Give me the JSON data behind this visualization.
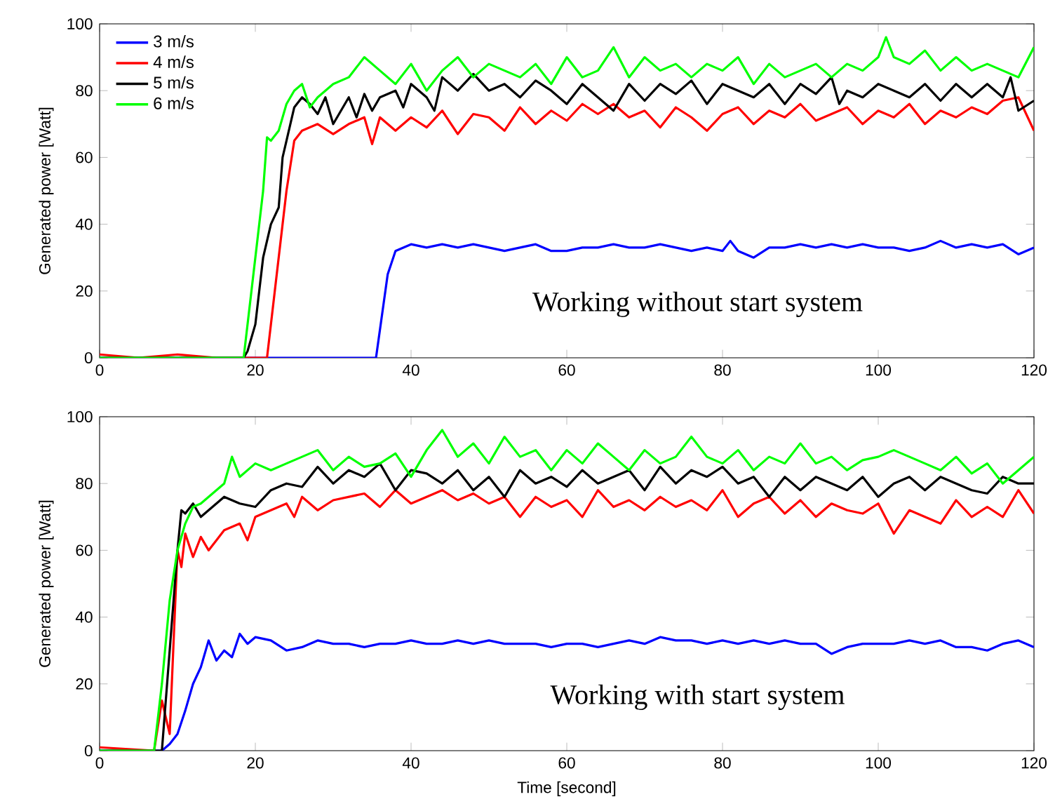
{
  "chart_data": [
    {
      "type": "line",
      "ylabel": "Generated power [Watt]",
      "xlim": [
        0,
        120
      ],
      "ylim": [
        0,
        100
      ],
      "xticks": [
        0,
        20,
        40,
        60,
        80,
        100,
        120
      ],
      "yticks": [
        0,
        20,
        40,
        60,
        80,
        100
      ],
      "grid": false,
      "legend": "top left",
      "line_style": "solid",
      "marker": "none",
      "annotations": [
        "Working without start system"
      ],
      "series": [
        {
          "name": "3 m/s",
          "color": "#0000ff",
          "x": [
            0,
            35.5,
            37,
            38,
            40,
            42,
            44,
            46,
            48,
            50,
            52,
            54,
            56,
            58,
            60,
            62,
            64,
            66,
            68,
            70,
            72,
            74,
            76,
            78,
            80,
            81,
            82,
            84,
            86,
            88,
            90,
            92,
            94,
            96,
            98,
            100,
            102,
            104,
            106,
            108,
            110,
            112,
            114,
            116,
            118,
            120
          ],
          "values": [
            0,
            0,
            25,
            32,
            34,
            33,
            34,
            33,
            34,
            33,
            32,
            33,
            34,
            32,
            32,
            33,
            33,
            34,
            33,
            33,
            34,
            33,
            32,
            33,
            32,
            35,
            32,
            30,
            33,
            33,
            34,
            33,
            34,
            33,
            34,
            33,
            33,
            32,
            33,
            35,
            33,
            34,
            33,
            34,
            31,
            33
          ]
        },
        {
          "name": "4 m/s",
          "color": "#ff0000",
          "x": [
            0,
            5,
            10,
            15,
            21.5,
            22.5,
            24,
            25,
            26,
            28,
            30,
            32,
            34,
            35,
            36,
            38,
            40,
            42,
            44,
            46,
            48,
            50,
            52,
            54,
            56,
            58,
            60,
            62,
            64,
            66,
            68,
            70,
            72,
            74,
            76,
            78,
            80,
            82,
            84,
            86,
            88,
            90,
            92,
            94,
            96,
            98,
            100,
            102,
            104,
            106,
            108,
            110,
            112,
            114,
            116,
            118,
            120
          ],
          "values": [
            1,
            0,
            1,
            0,
            0,
            20,
            50,
            65,
            68,
            70,
            67,
            70,
            72,
            64,
            72,
            68,
            72,
            69,
            74,
            67,
            73,
            72,
            68,
            75,
            70,
            74,
            71,
            76,
            73,
            76,
            72,
            74,
            69,
            75,
            72,
            68,
            73,
            75,
            70,
            74,
            72,
            76,
            71,
            73,
            75,
            70,
            74,
            72,
            76,
            70,
            74,
            72,
            75,
            73,
            77,
            78,
            68
          ]
        },
        {
          "name": "5 m/s",
          "color": "#000000",
          "x": [
            0,
            18.5,
            19,
            20,
            21,
            22,
            23,
            23.5,
            24,
            25,
            26,
            27,
            28,
            29,
            30,
            32,
            33,
            34,
            35,
            36,
            38,
            39,
            40,
            42,
            43,
            44,
            46,
            48,
            50,
            52,
            54,
            56,
            58,
            60,
            62,
            64,
            66,
            68,
            70,
            72,
            74,
            76,
            78,
            80,
            82,
            84,
            86,
            88,
            90,
            92,
            94,
            95,
            96,
            98,
            100,
            102,
            104,
            106,
            108,
            110,
            112,
            114,
            116,
            117,
            118,
            120
          ],
          "values": [
            0,
            0,
            2,
            10,
            30,
            40,
            45,
            60,
            65,
            75,
            78,
            76,
            73,
            78,
            70,
            78,
            72,
            79,
            74,
            78,
            80,
            75,
            82,
            78,
            74,
            84,
            80,
            85,
            80,
            82,
            78,
            83,
            80,
            76,
            82,
            78,
            74,
            82,
            77,
            82,
            79,
            83,
            76,
            82,
            80,
            78,
            82,
            76,
            82,
            79,
            84,
            76,
            80,
            78,
            82,
            80,
            78,
            82,
            77,
            82,
            78,
            82,
            78,
            84,
            74,
            77
          ]
        },
        {
          "name": "6 m/s",
          "color": "#00ff00",
          "x": [
            0,
            18.5,
            20,
            21,
            21.5,
            22,
            23,
            24,
            25,
            26,
            27,
            28,
            30,
            32,
            34,
            36,
            38,
            40,
            42,
            44,
            46,
            48,
            50,
            52,
            54,
            56,
            58,
            60,
            62,
            64,
            66,
            68,
            70,
            72,
            74,
            76,
            78,
            80,
            82,
            84,
            86,
            88,
            90,
            92,
            94,
            96,
            98,
            100,
            101,
            102,
            104,
            106,
            108,
            110,
            112,
            114,
            116,
            118,
            120
          ],
          "values": [
            0,
            0,
            30,
            50,
            66,
            65,
            68,
            76,
            80,
            82,
            75,
            78,
            82,
            84,
            90,
            86,
            82,
            88,
            80,
            86,
            90,
            84,
            88,
            86,
            84,
            88,
            82,
            90,
            84,
            86,
            93,
            84,
            90,
            86,
            88,
            84,
            88,
            86,
            90,
            82,
            88,
            84,
            86,
            88,
            84,
            88,
            86,
            90,
            96,
            90,
            88,
            92,
            86,
            90,
            86,
            88,
            86,
            84,
            93
          ]
        }
      ]
    },
    {
      "type": "line",
      "xlabel": "Time [second]",
      "ylabel": "Generated power [Watt]",
      "xlim": [
        0,
        120
      ],
      "ylim": [
        0,
        100
      ],
      "xticks": [
        0,
        20,
        40,
        60,
        80,
        100,
        120
      ],
      "yticks": [
        0,
        20,
        40,
        60,
        80,
        100
      ],
      "grid": false,
      "legend": false,
      "line_style": "solid",
      "marker": "none",
      "annotations": [
        "Working with start system"
      ],
      "series": [
        {
          "color": "#0000ff",
          "x": [
            0,
            8,
            9,
            10,
            11,
            12,
            13,
            14,
            15,
            16,
            17,
            18,
            19,
            20,
            22,
            24,
            26,
            28,
            30,
            32,
            34,
            36,
            38,
            40,
            42,
            44,
            46,
            48,
            50,
            52,
            54,
            56,
            58,
            60,
            62,
            64,
            66,
            68,
            70,
            72,
            74,
            76,
            78,
            80,
            82,
            84,
            86,
            88,
            90,
            92,
            94,
            96,
            98,
            100,
            102,
            104,
            106,
            108,
            110,
            112,
            114,
            116,
            118,
            120
          ],
          "values": [
            0,
            0,
            2,
            5,
            12,
            20,
            25,
            33,
            27,
            30,
            28,
            35,
            32,
            34,
            33,
            30,
            31,
            33,
            32,
            32,
            31,
            32,
            32,
            33,
            32,
            32,
            33,
            32,
            33,
            32,
            32,
            32,
            31,
            32,
            32,
            31,
            32,
            33,
            32,
            34,
            33,
            33,
            32,
            33,
            32,
            33,
            32,
            33,
            32,
            32,
            29,
            31,
            32,
            32,
            32,
            33,
            32,
            33,
            31,
            31,
            30,
            32,
            33,
            31
          ]
        },
        {
          "color": "#ff0000",
          "x": [
            0,
            7,
            8,
            9,
            10,
            10.5,
            11,
            12,
            13,
            14,
            16,
            18,
            19,
            20,
            22,
            24,
            25,
            26,
            28,
            30,
            32,
            34,
            36,
            38,
            40,
            42,
            44,
            46,
            48,
            50,
            52,
            54,
            56,
            58,
            60,
            62,
            64,
            66,
            68,
            70,
            72,
            74,
            76,
            78,
            80,
            82,
            84,
            86,
            88,
            90,
            92,
            94,
            96,
            98,
            100,
            102,
            104,
            106,
            108,
            110,
            112,
            114,
            116,
            118,
            120
          ],
          "values": [
            1,
            0,
            15,
            5,
            60,
            55,
            65,
            58,
            64,
            60,
            66,
            68,
            63,
            70,
            72,
            74,
            70,
            76,
            72,
            75,
            76,
            77,
            73,
            78,
            74,
            76,
            78,
            75,
            77,
            74,
            76,
            70,
            76,
            73,
            75,
            70,
            78,
            73,
            75,
            72,
            76,
            73,
            75,
            72,
            78,
            70,
            74,
            76,
            71,
            75,
            70,
            74,
            72,
            71,
            74,
            65,
            72,
            70,
            68,
            75,
            70,
            73,
            70,
            78,
            71
          ]
        },
        {
          "color": "#000000",
          "x": [
            0,
            8,
            9,
            10,
            10.5,
            11,
            12,
            13,
            14,
            16,
            18,
            20,
            22,
            24,
            26,
            28,
            30,
            32,
            34,
            36,
            38,
            40,
            42,
            44,
            46,
            48,
            50,
            52,
            54,
            56,
            58,
            60,
            62,
            64,
            66,
            68,
            70,
            72,
            74,
            76,
            78,
            80,
            82,
            84,
            86,
            88,
            90,
            92,
            94,
            96,
            98,
            100,
            102,
            104,
            106,
            108,
            110,
            112,
            114,
            116,
            118,
            120
          ],
          "values": [
            0,
            0,
            30,
            60,
            72,
            71,
            74,
            70,
            72,
            76,
            74,
            73,
            78,
            80,
            79,
            85,
            80,
            84,
            82,
            86,
            78,
            84,
            83,
            80,
            84,
            78,
            82,
            76,
            84,
            80,
            82,
            79,
            84,
            80,
            82,
            84,
            78,
            85,
            80,
            84,
            82,
            85,
            80,
            82,
            76,
            82,
            78,
            82,
            80,
            78,
            82,
            76,
            80,
            82,
            78,
            82,
            80,
            78,
            77,
            82,
            80,
            80
          ]
        },
        {
          "color": "#00ff00",
          "x": [
            0,
            7,
            8,
            9,
            10,
            11,
            12,
            13,
            14,
            16,
            17,
            18,
            20,
            22,
            24,
            26,
            28,
            30,
            32,
            34,
            36,
            38,
            40,
            42,
            44,
            46,
            48,
            50,
            52,
            54,
            56,
            58,
            60,
            62,
            64,
            66,
            68,
            70,
            72,
            74,
            76,
            78,
            80,
            82,
            84,
            86,
            88,
            90,
            92,
            94,
            96,
            98,
            100,
            102,
            104,
            106,
            108,
            110,
            112,
            114,
            116,
            118,
            120
          ],
          "values": [
            0,
            0,
            20,
            45,
            60,
            68,
            73,
            74,
            76,
            80,
            88,
            82,
            86,
            84,
            86,
            88,
            90,
            84,
            88,
            85,
            86,
            89,
            82,
            90,
            96,
            88,
            92,
            86,
            94,
            88,
            90,
            84,
            90,
            86,
            92,
            88,
            84,
            90,
            86,
            88,
            94,
            88,
            86,
            90,
            84,
            88,
            86,
            92,
            86,
            88,
            84,
            87,
            88,
            90,
            88,
            86,
            84,
            88,
            83,
            86,
            80,
            84,
            88
          ]
        }
      ]
    }
  ]
}
